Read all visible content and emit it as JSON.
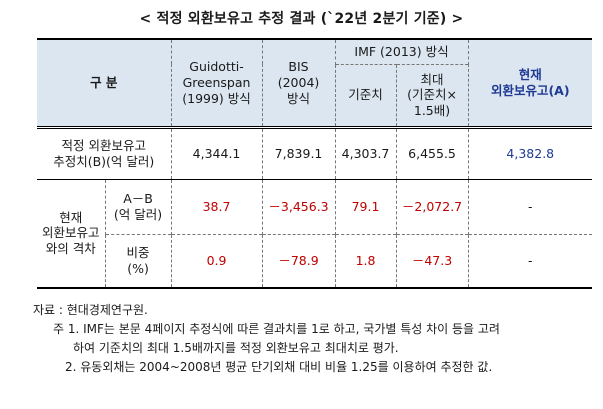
{
  "title": "< 적정 외환보유고 추정 결과 (`22년 2분기 기준) >",
  "header": {
    "category": "구 분",
    "guidotti": [
      "Guidotti-",
      "Greenspan",
      "(1999) 방식"
    ],
    "bis": [
      "BIS",
      "(2004)",
      "방식"
    ],
    "imf": "IMF (2013) 방식",
    "imf_base": "기준치",
    "imf_max": [
      "최대",
      "(기준치×",
      "1.5배)"
    ],
    "current": [
      "현재",
      "외환보유고(A)"
    ]
  },
  "row_est": {
    "label": [
      "적정 외환보유고",
      "추정치(B)(억 달러)"
    ],
    "values": [
      "4,344.1",
      "7,839.1",
      "4,303.7",
      "6,455.5",
      "4,382.8"
    ]
  },
  "gap": {
    "label": [
      "현재",
      "외환보유고",
      "와의 격차"
    ],
    "ab_label": [
      "A－B",
      "(억 달러)"
    ],
    "ab_values": [
      "38.7",
      "－3,456.3",
      "79.1",
      "－2,072.7",
      "-"
    ],
    "ratio_label": [
      "비중",
      "(%)"
    ],
    "ratio_values": [
      "0.9",
      "－78.9",
      "1.8",
      "－47.3",
      "-"
    ]
  },
  "notes": {
    "source": "자료 : 현대경제연구원.",
    "note1a": "주 1. IMF는 본문 4페이지 추정식에 따른 결과치를 1로 하고, 국가별 특성 차이 등을 고려",
    "note1b": "하여 기준치의 최대 1.5배까지를 적정 외환보유고 최대치로 평가.",
    "note2": "2. 유동외채는 2004~2008년 평균 단기외채 대비 비율 1.25를 이용하여 추정한 값."
  },
  "colors": {
    "header_bg": "#dce6f1",
    "negative_red": "#c00000",
    "current_blue": "#1f3a93"
  }
}
